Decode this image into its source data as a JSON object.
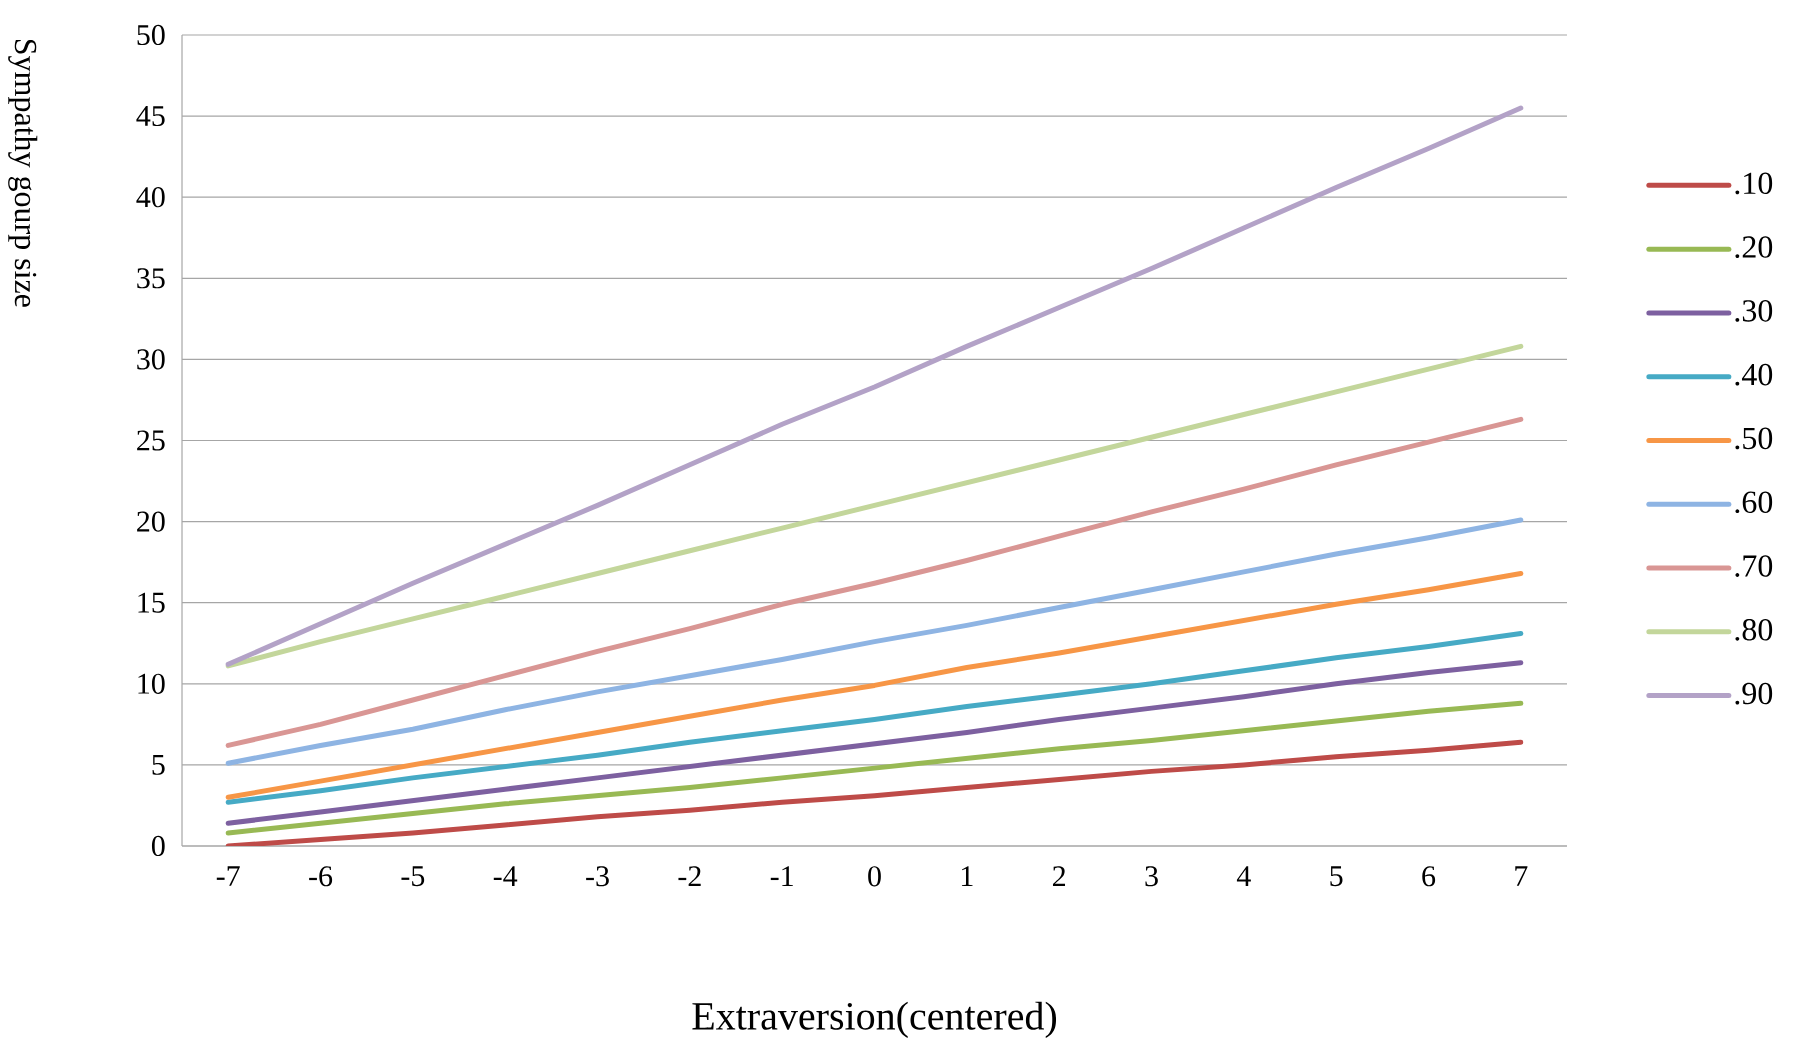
{
  "chart_data": {
    "type": "line",
    "xlabel": "Extraversion(centered)",
    "ylabel": "Sympathy gourp size",
    "categories": [
      "-7",
      "-6",
      "-5",
      "-4",
      "-3",
      "-2",
      "-1",
      "0",
      "1",
      "2",
      "3",
      "4",
      "5",
      "6",
      "7"
    ],
    "ylim": [
      0,
      50
    ],
    "yticks": [
      0,
      5,
      10,
      15,
      20,
      25,
      30,
      35,
      40,
      45,
      50
    ],
    "grid": "y",
    "legend": "right",
    "marker": "none",
    "line_style": "solid",
    "series": [
      {
        "name": ".10",
        "color": "#be4b48",
        "values": [
          0,
          0.4,
          0.8,
          1.3,
          1.8,
          2.2,
          2.7,
          3.1,
          3.6,
          4.1,
          4.6,
          5.0,
          5.5,
          5.9,
          6.4
        ]
      },
      {
        "name": ".20",
        "color": "#98b954",
        "values": [
          0.8,
          1.4,
          2.0,
          2.6,
          3.1,
          3.6,
          4.2,
          4.8,
          5.4,
          6.0,
          6.5,
          7.1,
          7.7,
          8.3,
          8.8
        ]
      },
      {
        "name": ".30",
        "color": "#7d60a0",
        "values": [
          1.4,
          2.1,
          2.8,
          3.5,
          4.2,
          4.9,
          5.6,
          6.3,
          7.0,
          7.8,
          8.5,
          9.2,
          10.0,
          10.7,
          11.3
        ]
      },
      {
        "name": ".40",
        "color": "#46aac5",
        "values": [
          2.7,
          3.4,
          4.2,
          4.9,
          5.6,
          6.4,
          7.1,
          7.8,
          8.6,
          9.3,
          10.0,
          10.8,
          11.6,
          12.3,
          13.1
        ]
      },
      {
        "name": ".50",
        "color": "#f79646",
        "values": [
          3.0,
          4.0,
          5.0,
          6.0,
          7.0,
          8.0,
          9.0,
          9.9,
          11.0,
          11.9,
          12.9,
          13.9,
          14.9,
          15.8,
          16.8
        ]
      },
      {
        "name": ".60",
        "color": "#8eb4e3",
        "values": [
          5.1,
          6.2,
          7.2,
          8.4,
          9.5,
          10.5,
          11.5,
          12.6,
          13.6,
          14.7,
          15.8,
          16.9,
          18.0,
          19.0,
          20.1
        ]
      },
      {
        "name": ".70",
        "color": "#d99694",
        "values": [
          6.2,
          7.5,
          9.0,
          10.5,
          12.0,
          13.4,
          14.9,
          16.2,
          17.6,
          19.1,
          20.6,
          22.0,
          23.5,
          24.9,
          26.3
        ]
      },
      {
        "name": ".80",
        "color": "#c3d69b",
        "values": [
          11.1,
          12.6,
          14.0,
          15.4,
          16.8,
          18.2,
          19.6,
          21.0,
          22.4,
          23.8,
          25.2,
          26.6,
          28.0,
          29.4,
          30.8
        ]
      },
      {
        "name": ".90",
        "color": "#b3a2c7",
        "values": [
          11.2,
          13.7,
          16.2,
          18.6,
          21.0,
          23.5,
          26.0,
          28.3,
          30.8,
          33.2,
          35.6,
          38.1,
          40.6,
          43.0,
          45.5
        ]
      }
    ]
  }
}
